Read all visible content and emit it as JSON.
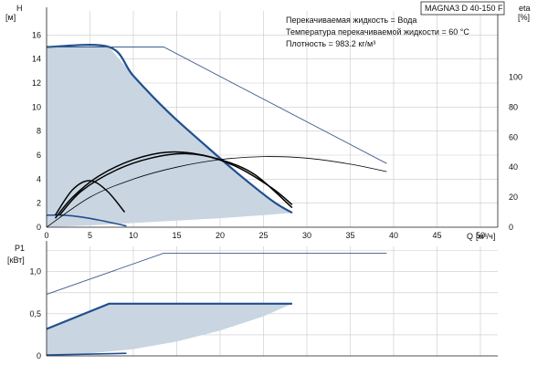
{
  "title": "MAGNA3 D 40-150 F",
  "info_lines": [
    "Перекачиваемая жидкость = Вода",
    "Температура перекачиваемой жидкости = 60 °C",
    "Плотность = 983.2 кг/м³"
  ],
  "colors": {
    "area": "#c9d5e1",
    "primary": "#1f4f8f",
    "secondary": "#3b5c8c",
    "eta": "#000000",
    "grid": "#c9c9c9"
  },
  "chart_data": [
    {
      "type": "line",
      "name": "head",
      "ylabel": "H",
      "yunit": "[м]",
      "xlabel": "Q",
      "xunit": "[м³/ч]",
      "xlim": [
        0,
        52
      ],
      "ylim": [
        0,
        18
      ],
      "x_ticks": [
        0,
        5,
        10,
        15,
        20,
        25,
        30,
        35,
        40,
        45,
        50
      ],
      "y_ticks": [
        0,
        2,
        4,
        6,
        8,
        10,
        12,
        14,
        16
      ],
      "y2label": "eta",
      "y2unit": "[%]",
      "y2lim": [
        0,
        144
      ],
      "y2_ticks": [
        0,
        20,
        40,
        60,
        80,
        100
      ],
      "grid": true,
      "series": [
        {
          "role": "operating-area",
          "x": [
            0,
            7.2,
            10,
            14,
            18,
            22,
            26,
            28.3,
            25,
            20,
            15,
            10,
            5,
            2,
            0
          ],
          "y": [
            15,
            15,
            12.6,
            9.6,
            7.0,
            4.5,
            2.2,
            1.2,
            1.0,
            0.75,
            0.55,
            0.35,
            0.15,
            0.05,
            0
          ]
        },
        {
          "role": "max-curve",
          "x": [
            0,
            7.2,
            10,
            14,
            18,
            22,
            26,
            28.3
          ],
          "y": [
            15,
            15,
            12.6,
            9.6,
            7.0,
            4.5,
            2.2,
            1.2
          ]
        },
        {
          "role": "min-curve",
          "x": [
            0,
            2,
            4,
            6,
            8,
            9.2
          ],
          "y": [
            1.0,
            1.0,
            0.85,
            0.6,
            0.3,
            0.1
          ]
        },
        {
          "role": "max-curve-thin",
          "x": [
            0,
            13.5,
            39.2
          ],
          "y": [
            15,
            15,
            5.3
          ]
        },
        {
          "role": "eta-max",
          "axis": "y2",
          "x": [
            1,
            3,
            6,
            10,
            14,
            18,
            22,
            26,
            28.3
          ],
          "y": [
            6,
            20,
            34,
            45,
            50,
            48,
            40,
            26,
            15
          ]
        },
        {
          "role": "eta-max-2",
          "axis": "y2",
          "x": [
            1.5,
            4,
            8,
            12,
            16,
            20,
            24,
            28.3
          ],
          "y": [
            8,
            24,
            38,
            46,
            49,
            45,
            35,
            13
          ]
        },
        {
          "role": "eta-min",
          "axis": "y2",
          "x": [
            1,
            3,
            5,
            7,
            9
          ],
          "y": [
            8,
            25,
            31,
            24,
            10
          ]
        },
        {
          "role": "eta-thin",
          "axis": "y2",
          "x": [
            0,
            5,
            10,
            15,
            20,
            25,
            30,
            35,
            39.2
          ],
          "y": [
            0,
            20,
            32,
            40,
            45,
            47,
            46,
            42,
            37
          ]
        }
      ]
    },
    {
      "type": "line",
      "name": "power",
      "ylabel": "P1",
      "yunit": "[кВт]",
      "xlim": [
        0,
        52
      ],
      "ylim": [
        0,
        1.3
      ],
      "y_ticks": [
        0,
        0.5,
        1.0
      ],
      "y_tick_labels": [
        "0",
        "0,5",
        "1,0"
      ],
      "grid": true,
      "series": [
        {
          "role": "operating-area",
          "x": [
            0,
            7.2,
            28.3,
            25,
            20,
            15,
            10,
            5,
            0
          ],
          "y": [
            0.32,
            0.62,
            0.62,
            0.47,
            0.3,
            0.17,
            0.08,
            0.03,
            0
          ]
        },
        {
          "role": "max-curve",
          "x": [
            0,
            7.2,
            28.3
          ],
          "y": [
            0.32,
            0.62,
            0.62
          ]
        },
        {
          "role": "max-curve-thin",
          "x": [
            0,
            13.5,
            39.2
          ],
          "y": [
            0.73,
            1.22,
            1.22
          ]
        },
        {
          "role": "min-curve",
          "x": [
            0,
            9.2
          ],
          "y": [
            0.01,
            0.03
          ]
        }
      ]
    }
  ]
}
